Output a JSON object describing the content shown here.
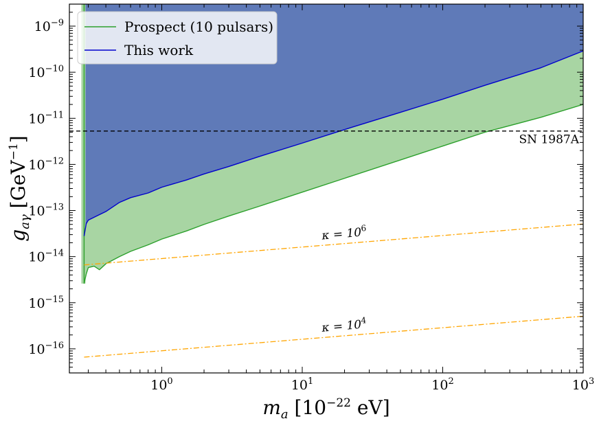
{
  "chart_data": {
    "type": "area",
    "xscale": "log",
    "yscale": "log",
    "xlim": [
      0.22,
      1000
    ],
    "ylim": [
      3e-17,
      3e-09
    ],
    "xlabel": "m_a [10^-22 eV]",
    "ylabel": "g_aγ [GeV^-1]",
    "x_ticks": [
      {
        "value": 1,
        "base": "10",
        "exp": "0"
      },
      {
        "value": 10,
        "base": "10",
        "exp": "1"
      },
      {
        "value": 100,
        "base": "10",
        "exp": "2"
      },
      {
        "value": 1000,
        "base": "10",
        "exp": "3"
      }
    ],
    "y_ticks": [
      {
        "value": 1e-16,
        "base": "10",
        "exp": "−16"
      },
      {
        "value": 1e-15,
        "base": "10",
        "exp": "−15"
      },
      {
        "value": 1e-14,
        "base": "10",
        "exp": "−14"
      },
      {
        "value": 1e-13,
        "base": "10",
        "exp": "−13"
      },
      {
        "value": 1e-12,
        "base": "10",
        "exp": "−12"
      },
      {
        "value": 1e-11,
        "base": "10",
        "exp": "−11"
      },
      {
        "value": 1e-10,
        "base": "10",
        "exp": "−10"
      },
      {
        "value": 1e-09,
        "base": "10",
        "exp": "−9"
      }
    ],
    "legend": {
      "position": "top-left",
      "entries": [
        {
          "label": "Prospect (10 pulsars)",
          "color": "#2ca02c"
        },
        {
          "label": "This work",
          "color": "#0000cc"
        }
      ]
    },
    "series": [
      {
        "name": "This work",
        "line_color": "#0000cc",
        "fill_color": "#5f7ab8",
        "x": [
          0.28,
          0.29,
          0.3,
          0.35,
          0.4,
          0.5,
          0.6,
          0.8,
          1,
          1.5,
          2,
          3,
          5,
          10,
          20,
          50,
          100,
          200,
          500,
          1000
        ],
        "y": [
          2.8e-14,
          5.2e-14,
          6.2e-14,
          7.8e-14,
          9.5e-14,
          1.5e-13,
          1.9e-13,
          2.4e-13,
          3.2e-13,
          4.6e-13,
          6.2e-13,
          9e-13,
          1.5e-12,
          2.9e-12,
          5.7e-12,
          1.35e-11,
          2.6e-11,
          5.2e-11,
          1.25e-10,
          2.9e-10
        ]
      },
      {
        "name": "Prospect (10 pulsars)",
        "line_color": "#2ca02c",
        "fill_color": "#a8d5a3",
        "x": [
          0.28,
          0.29,
          0.3,
          0.33,
          0.36,
          0.4,
          0.5,
          0.6,
          0.8,
          1,
          1.5,
          2,
          3,
          5,
          10,
          20,
          50,
          100,
          200,
          500,
          1000
        ],
        "y": [
          2.6e-15,
          4.2e-15,
          5.8e-15,
          6.2e-15,
          5.2e-15,
          7e-15,
          1e-14,
          1.3e-14,
          1.8e-14,
          2.4e-14,
          3.6e-14,
          5e-14,
          7.6e-14,
          1.25e-13,
          2.5e-13,
          5e-13,
          1.25e-12,
          2.5e-12,
          5e-12,
          1.05e-11,
          2e-11
        ]
      },
      {
        "name": "",
        "style": "dashed",
        "color": "#000000",
        "x": [
          0.22,
          1000
        ],
        "y": [
          5.3e-12,
          5.3e-12
        ]
      },
      {
        "name": "",
        "style": "dash-dot",
        "color": "#ffa500",
        "x": [
          0.28,
          1000
        ],
        "y": [
          6.6e-15,
          5.1e-14
        ]
      },
      {
        "name": "",
        "style": "dash-dot",
        "color": "#ffa500",
        "x": [
          0.28,
          1000
        ],
        "y": [
          6.6e-17,
          5.1e-16
        ]
      }
    ],
    "annotations": [
      {
        "text": "SN 1987A",
        "x": 550,
        "y": 3.4e-12
      },
      {
        "text": "κ = 10",
        "sup": "6",
        "x": 20,
        "y": 2.6e-14
      },
      {
        "text": "κ = 10",
        "sup": "4",
        "x": 20,
        "y": 2.6e-16
      }
    ],
    "vertical_boundary": {
      "x": 0.28,
      "color": "#2ca02c"
    }
  }
}
